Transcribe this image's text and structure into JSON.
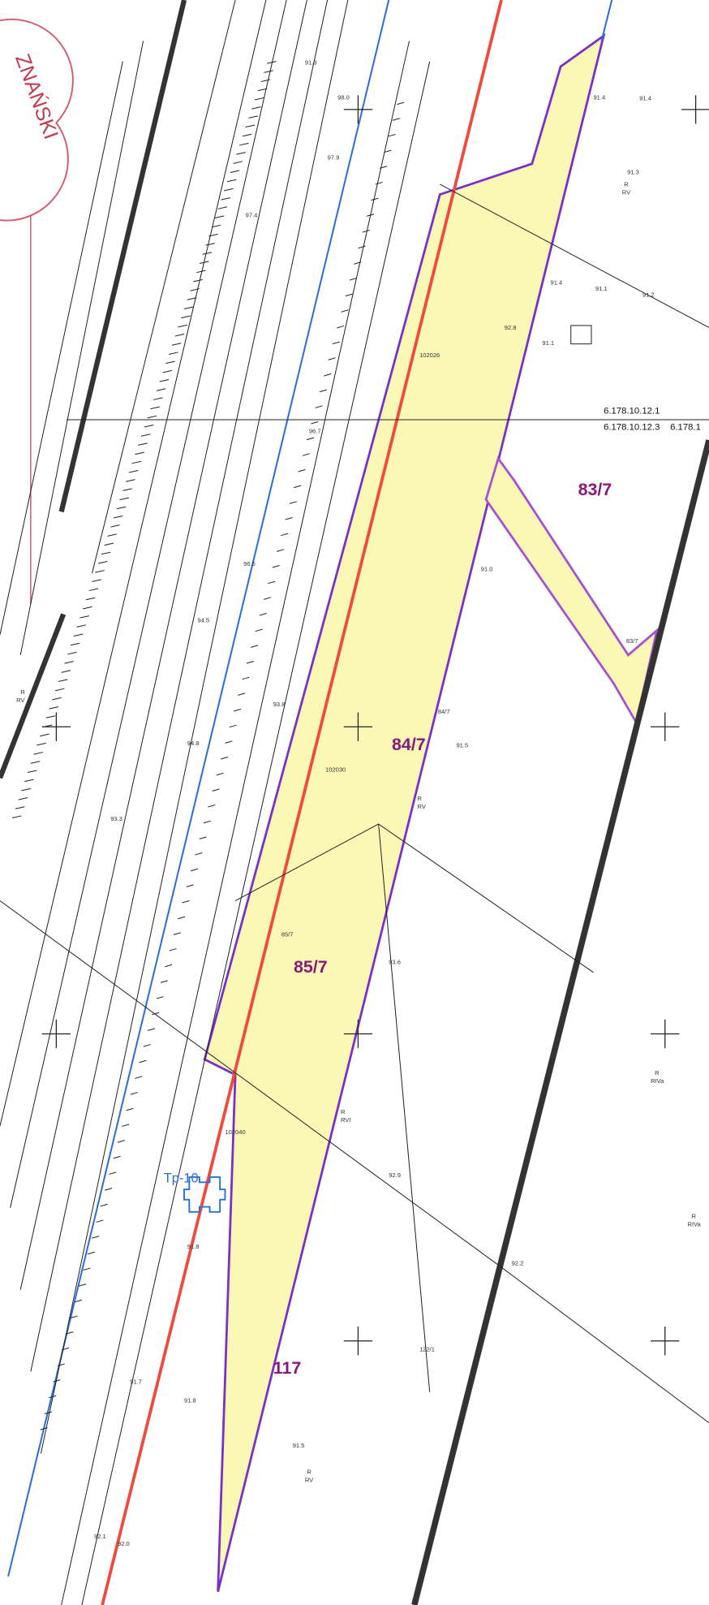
{
  "stamp": "ZNAŃSKI",
  "parcels": [
    {
      "label": "83/7"
    },
    {
      "label": "84/7"
    },
    {
      "label": "85/7"
    },
    {
      "label": "117"
    }
  ],
  "marker": "Tp-10",
  "coordinates": [
    "6.178.10.12.1",
    "6.178.10.12.3",
    "6.178.1"
  ],
  "small_labels": [
    "83/7",
    "84/7",
    "85/7",
    "122/1",
    "102026",
    "102030",
    "102040",
    "R",
    "RV",
    "R",
    "RV",
    "R",
    "RVI",
    "R",
    "RIVa",
    "R",
    "RV",
    "R",
    "RV",
    "R",
    "RIVa",
    "91.5",
    "91.0",
    "93.6",
    "92.9",
    "92.2",
    "91.8",
    "91.7",
    "91.5",
    "91.8",
    "92.1",
    "92.0",
    "91.4",
    "91.3",
    "91.2",
    "91.1",
    "91.4",
    "91.3",
    "98.0",
    "97.9",
    "97.4",
    "96.7",
    "96.5",
    "94.8",
    "94.5",
    "93.3",
    "93.8",
    "92.8",
    "91.4",
    "91.1",
    "91.2",
    "91.1"
  ]
}
